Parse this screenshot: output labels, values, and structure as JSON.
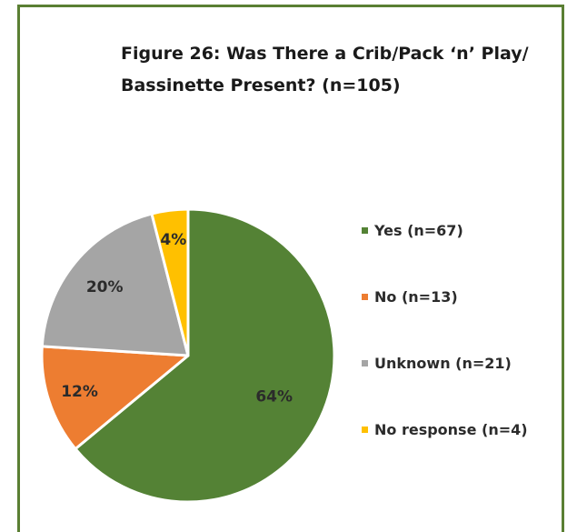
{
  "chart_data": {
    "type": "pie",
    "title": "Figure 26: Was There a Crib/Pack ‘n’ Play/ Bassinette Present? (n=105)",
    "title_lines": [
      "Figure 26: Was There a Crib/Pack ‘n’ Play/",
      "Bassinette Present? (n=105)"
    ],
    "categories": [
      "Yes (n=67)",
      "No (n=13)",
      "Unknown (n=21)",
      "No response (n=4)"
    ],
    "values": [
      64,
      12,
      20,
      4
    ],
    "labels": [
      "64%",
      "12%",
      "20%",
      "4%"
    ],
    "colors": [
      "#548235",
      "#ed7d31",
      "#a5a5a5",
      "#ffc000"
    ],
    "legend_position": "right",
    "start_angle_deg": 0,
    "direction": "clockwise"
  },
  "frame_color": "#5a7f33"
}
